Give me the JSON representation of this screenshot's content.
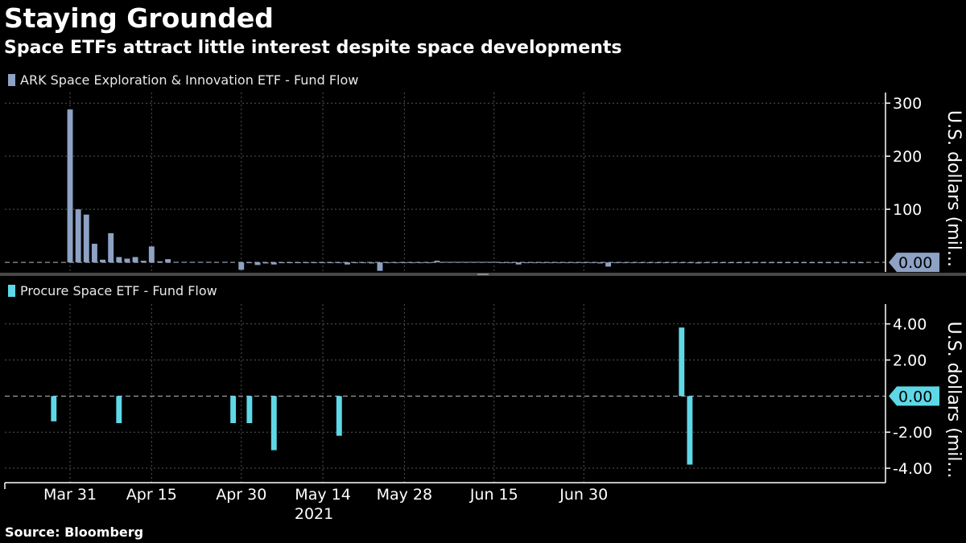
{
  "title": "Staying Grounded",
  "subtitle": "Space ETFs attract little interest despite space developments",
  "source": "Source: Bloomberg",
  "colors": {
    "background": "#000000",
    "ark": "#8da2c4",
    "procure": "#5ed8e6",
    "grid": "#555555",
    "axis": "#ffffff"
  },
  "chart_data": [
    {
      "type": "bar",
      "title": "ARK Space Exploration & Innovation ETF - Fund Flow",
      "legend": "ARK Space Exploration & Innovation ETF - Fund Flow",
      "ylabel": "U.S. dollars (mil...",
      "ylim": [
        -18,
        320
      ],
      "yticks": [
        {
          "value": 300,
          "label": "300"
        },
        {
          "value": 200,
          "label": "200"
        },
        {
          "value": 100,
          "label": "100"
        }
      ],
      "last_value_label": "0.00",
      "x_range_days": [
        -8,
        100
      ],
      "x": [
        0,
        1,
        2,
        3,
        4,
        5,
        6,
        7,
        8,
        9,
        10,
        11,
        12,
        13,
        14,
        15,
        16,
        17,
        18,
        19,
        20,
        21,
        22,
        23,
        24,
        25,
        26,
        27,
        28,
        29,
        30,
        31,
        32,
        33,
        34,
        35,
        36,
        37,
        38,
        39,
        40,
        41,
        42,
        43,
        44,
        45,
        46,
        47,
        48,
        49,
        50,
        51,
        52,
        53,
        54,
        55,
        56,
        57,
        58,
        59,
        60,
        61,
        62,
        63,
        64,
        65,
        66,
        67,
        68,
        69,
        70,
        71,
        72,
        73,
        74,
        75,
        76,
        77,
        78,
        79,
        80,
        81,
        82,
        83,
        84,
        85,
        86,
        87,
        88,
        89,
        90,
        91,
        92,
        93,
        94,
        95,
        96,
        97,
        98
      ],
      "values": [
        288,
        100,
        90,
        35,
        5,
        55,
        10,
        7,
        10,
        3,
        30,
        2,
        6,
        1,
        1,
        1,
        1,
        1,
        0,
        1,
        0,
        -14,
        -1,
        -5,
        -2,
        -4,
        -1,
        -1,
        -1,
        -1,
        -1,
        -1,
        -1,
        -1,
        -4,
        -1,
        -1,
        -2,
        -16,
        -1,
        -1,
        -1,
        -1,
        -1,
        -1,
        3,
        1,
        1,
        1,
        1,
        1,
        1,
        1,
        -1,
        -1,
        -4,
        -1,
        -1,
        -1,
        -1,
        -1,
        -1,
        -1,
        -1,
        -1,
        -2,
        -8,
        -1,
        -1,
        -1,
        -1,
        -1,
        -1,
        -1,
        -1,
        -1,
        -1,
        -2,
        -1,
        -1,
        -1,
        -1,
        -1,
        -1,
        -1,
        -1,
        -1,
        -1,
        -1,
        -1,
        -1,
        -1,
        -1,
        -1,
        -1,
        -1,
        -1,
        -1,
        0
      ]
    },
    {
      "type": "bar",
      "title": "Procure Space ETF - Fund Flow",
      "legend": "Procure Space ETF - Fund Flow",
      "ylabel": "U.S. dollars (mil...",
      "ylim": [
        -4.8,
        5.1
      ],
      "yticks": [
        {
          "value": 4,
          "label": "4.00"
        },
        {
          "value": 2,
          "label": "2.00"
        },
        {
          "value": -2,
          "label": "-2.00"
        },
        {
          "value": -4,
          "label": "-4.00"
        }
      ],
      "last_value_label": "0.00",
      "x_range_days": [
        -8,
        100
      ],
      "x": [
        -2,
        6,
        20,
        22,
        25,
        33,
        75,
        76
      ],
      "values": [
        -1.4,
        -1.5,
        -1.5,
        -1.5,
        -3.0,
        -2.2,
        3.8,
        -3.8
      ]
    }
  ],
  "x_axis": {
    "ticks": [
      {
        "day": 0,
        "label": "Mar 31"
      },
      {
        "day": 10,
        "label": "Apr 15"
      },
      {
        "day": 21,
        "label": "Apr 30"
      },
      {
        "day": 31,
        "label": "May 14"
      },
      {
        "day": 41,
        "label": "May 28"
      },
      {
        "day": 52,
        "label": "Jun 15"
      },
      {
        "day": 63,
        "label": "Jun 30"
      }
    ],
    "year_label": "2021"
  }
}
